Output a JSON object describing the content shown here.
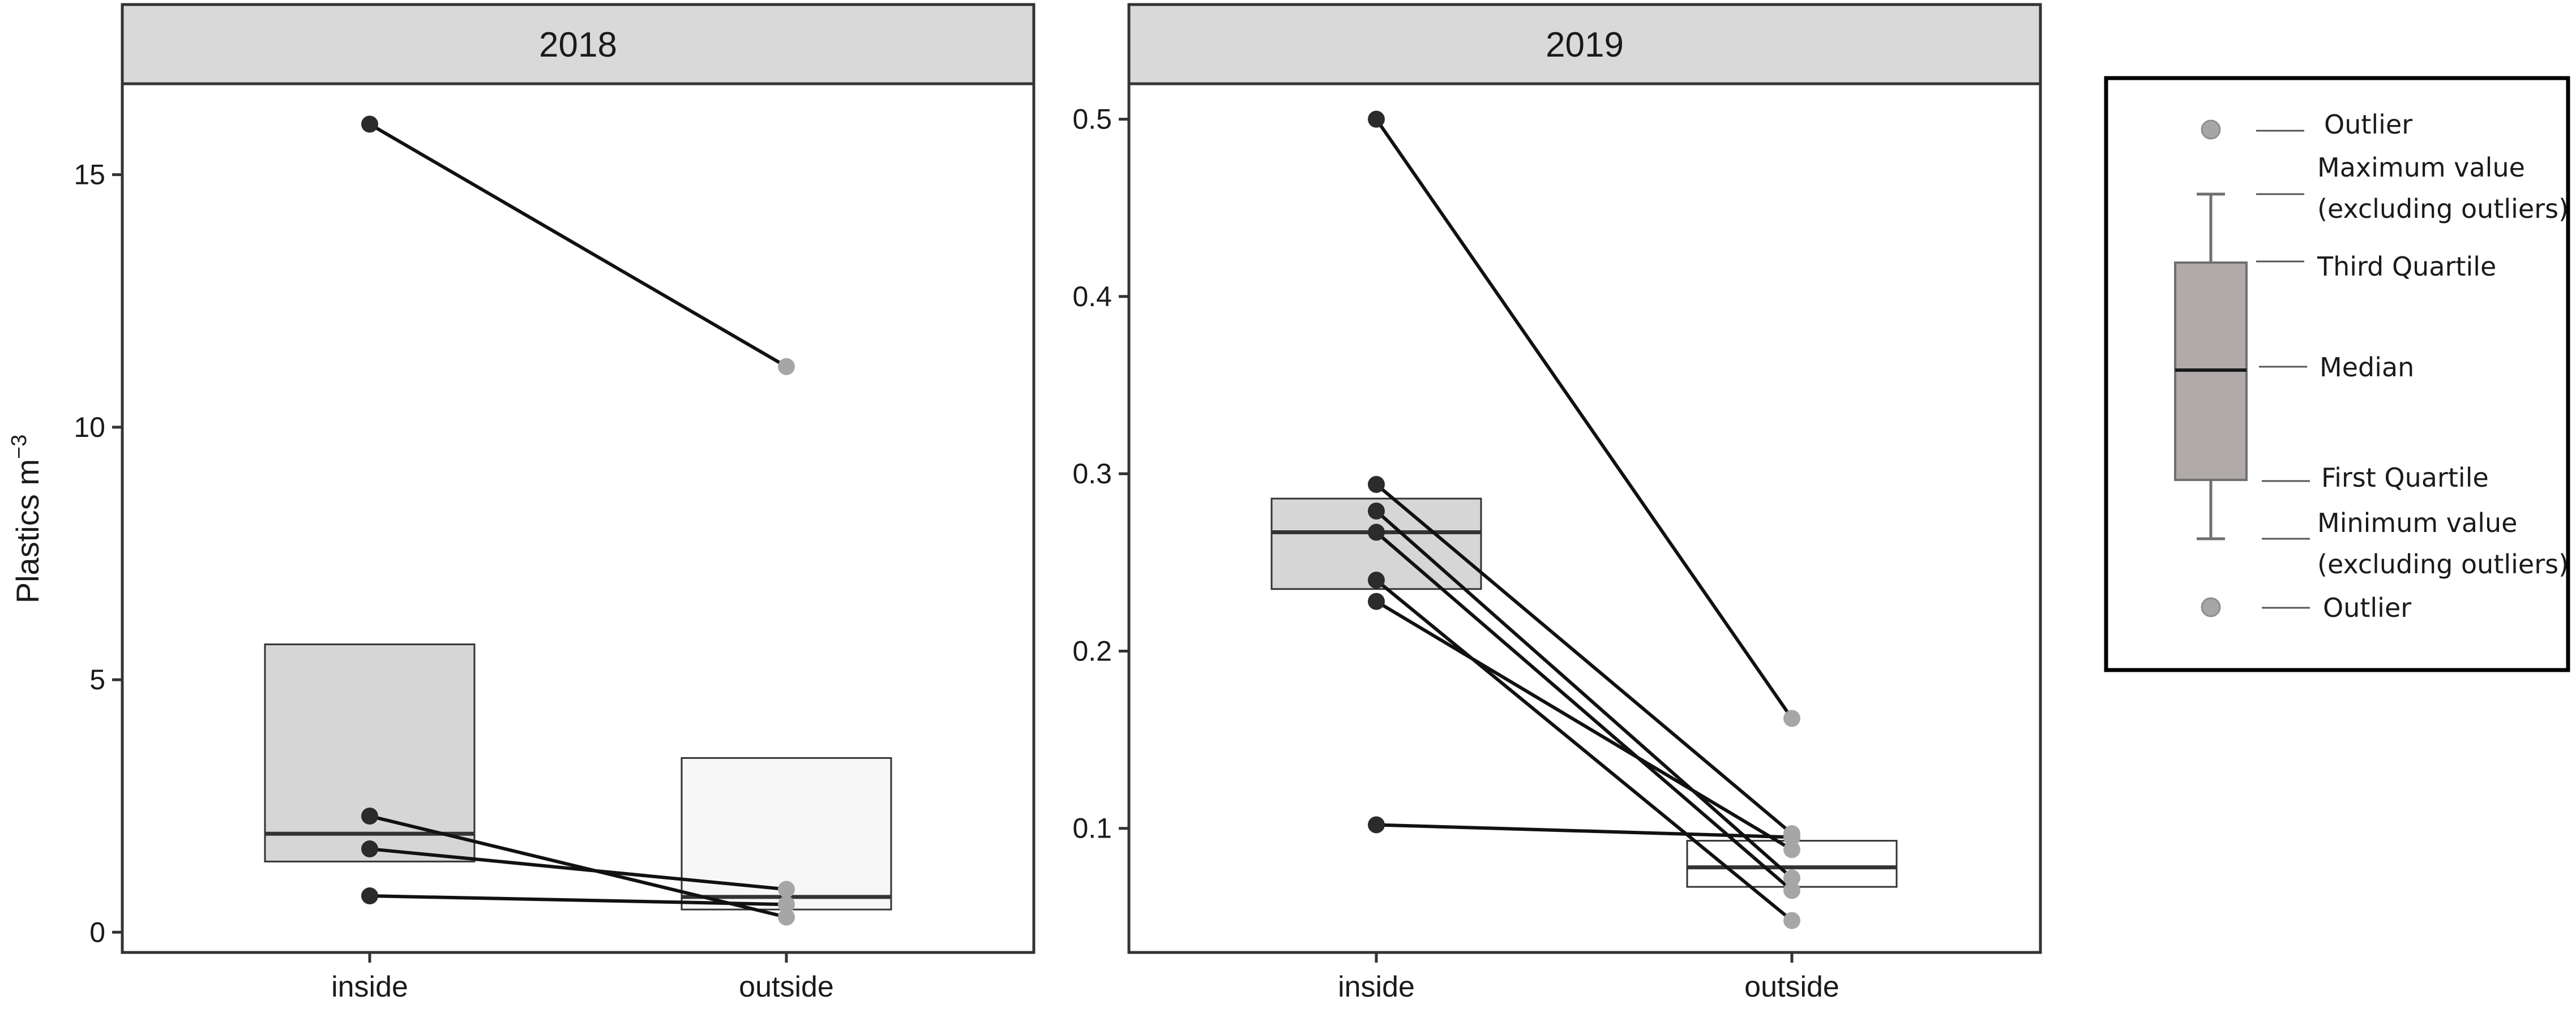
{
  "chart_data": {
    "type": "box",
    "ylabel": "Plastics m",
    "ylabel_superscript": "−3",
    "panels": [
      {
        "title": "2018",
        "ylim": [
          -0.4,
          16.8
        ],
        "yticks": [
          {
            "value": 0,
            "label": "0"
          },
          {
            "value": 5,
            "label": "5"
          },
          {
            "value": 10,
            "label": "10"
          },
          {
            "value": 15,
            "label": "15"
          }
        ],
        "categories": [
          "inside",
          "outside"
        ],
        "boxes": [
          {
            "category": "inside",
            "q1": 1.4,
            "median": 1.95,
            "q3": 5.7,
            "fill": "#d6d6d6"
          },
          {
            "category": "outside",
            "q1": 0.45,
            "median": 0.7,
            "q3": 3.45,
            "fill": "#f7f7f7"
          }
        ],
        "pairs": [
          {
            "inside": 16.0,
            "outside": 11.2
          },
          {
            "inside": 2.3,
            "outside": 0.3
          },
          {
            "inside": 1.65,
            "outside": 0.85
          },
          {
            "inside": 0.72,
            "outside": 0.55
          }
        ]
      },
      {
        "title": "2019",
        "ylim": [
          0.03,
          0.52
        ],
        "yticks": [
          {
            "value": 0.1,
            "label": "0.1"
          },
          {
            "value": 0.2,
            "label": "0.2"
          },
          {
            "value": 0.3,
            "label": "0.3"
          },
          {
            "value": 0.4,
            "label": "0.4"
          },
          {
            "value": 0.5,
            "label": "0.5"
          }
        ],
        "categories": [
          "inside",
          "outside"
        ],
        "boxes": [
          {
            "category": "inside",
            "q1": 0.235,
            "median": 0.267,
            "q3": 0.286,
            "fill": "#d6d6d6"
          },
          {
            "category": "outside",
            "q1": 0.067,
            "median": 0.078,
            "q3": 0.093,
            "fill": "#ffffff"
          }
        ],
        "pairs": [
          {
            "inside": 0.5,
            "outside": 0.162
          },
          {
            "inside": 0.294,
            "outside": 0.097
          },
          {
            "inside": 0.279,
            "outside": 0.072
          },
          {
            "inside": 0.267,
            "outside": 0.065
          },
          {
            "inside": 0.24,
            "outside": 0.048
          },
          {
            "inside": 0.228,
            "outside": 0.088
          },
          {
            "inside": 0.102,
            "outside": 0.095
          }
        ]
      }
    ],
    "point_colors": {
      "inside": "#2b2b2b",
      "outside": "#a6a6a6"
    },
    "legend": {
      "labels": [
        "Outlier",
        "Maximum value",
        "(excluding outliers)",
        "Third Quartile",
        "Median",
        "First Quartile",
        "Minimum value",
        "(excluding outliers)",
        "Outlier"
      ]
    }
  }
}
